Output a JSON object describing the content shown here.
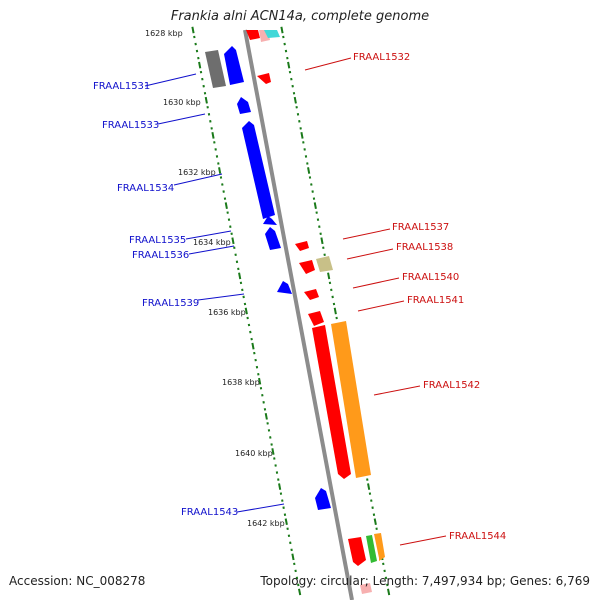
{
  "title": "Frankia alni ACN14a, complete genome",
  "accession_text": "Accession: NC_008278",
  "summary_text": "Topology: circular; Length: 7,497,934 bp; Genes: 6,769",
  "colors": {
    "backbone": "#8c8c8c",
    "tick": "#1a7a1a",
    "reverse_label": "#1010cc",
    "forward_label": "#cc1010",
    "reverse_gene": "#0000ff",
    "forward_gene": "#ff0000",
    "gray_feature": "#6e6e6e",
    "orange_feature": "#ff9a1a",
    "green_feature": "#33bb33",
    "khaki_feature": "#c8c088",
    "cyan_feature": "#40d8d8"
  },
  "kbp_marks": [
    "1628 kbp",
    "1630 kbp",
    "1632 kbp",
    "1634 kbp",
    "1636 kbp",
    "1638 kbp",
    "1640 kbp",
    "1642 kbp"
  ],
  "reverse_strand_labels": [
    "FRAAL1531",
    "FRAAL1533",
    "FRAAL1534",
    "FRAAL1535",
    "FRAAL1536",
    "FRAAL1539",
    "FRAAL1543"
  ],
  "forward_strand_labels": [
    "FRAAL1532",
    "FRAAL1537",
    "FRAAL1538",
    "FRAAL1540",
    "FRAAL1541",
    "FRAAL1542",
    "FRAAL1544"
  ]
}
